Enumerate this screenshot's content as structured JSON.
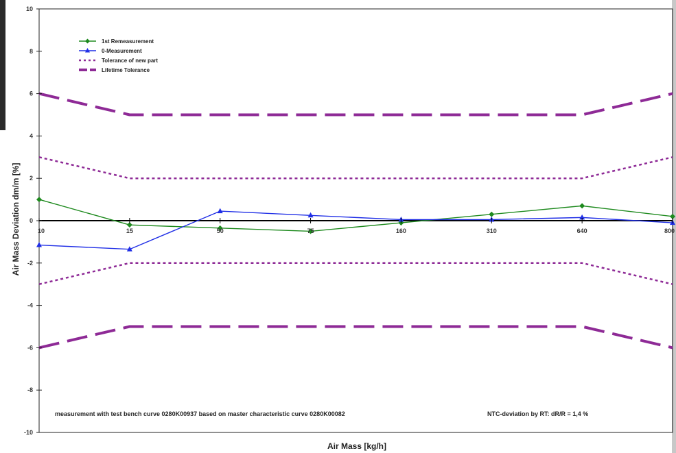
{
  "chart_data": {
    "type": "line",
    "categories": [
      "10",
      "15",
      "50",
      "75",
      "160",
      "310",
      "640",
      "800"
    ],
    "xlabel": "Air Mass [kg/h]",
    "ylabel": "Air Mass Deviation dm/m [%]",
    "ylim": [
      -10,
      10
    ],
    "yticks": [
      -10,
      -8,
      -6,
      -4,
      -2,
      0,
      2,
      4,
      6,
      8,
      10
    ],
    "legend_position": "top-left",
    "series": [
      {
        "name": "1st Remeasurement",
        "values": [
          1.0,
          -0.2,
          -0.35,
          -0.5,
          -0.1,
          0.3,
          0.7,
          0.2
        ],
        "color": "#1e8a1e",
        "style": "solid",
        "marker": "diamond"
      },
      {
        "name": "0-Measurement",
        "values": [
          -1.15,
          -1.35,
          0.45,
          0.25,
          0.05,
          0.05,
          0.15,
          -0.1
        ],
        "color": "#1f2ee6",
        "style": "solid",
        "marker": "triangle"
      },
      {
        "name": "Tolerance of new part",
        "values": [
          3,
          2,
          2,
          2,
          2,
          2,
          2,
          3
        ],
        "mirror": true,
        "color": "#8e2a96",
        "style": "dotted"
      },
      {
        "name": "Lifetime Tolerance",
        "values": [
          6,
          5,
          5,
          5,
          5,
          5,
          5,
          6
        ],
        "mirror": true,
        "color": "#8e2a96",
        "style": "dashed"
      }
    ],
    "annotations": [
      "measurement with test bench curve 0280K00937 based on master characteristic curve 0280K00082",
      "NTC-deviation by RT: dR/R = 1,4 %"
    ],
    "grid": false
  }
}
